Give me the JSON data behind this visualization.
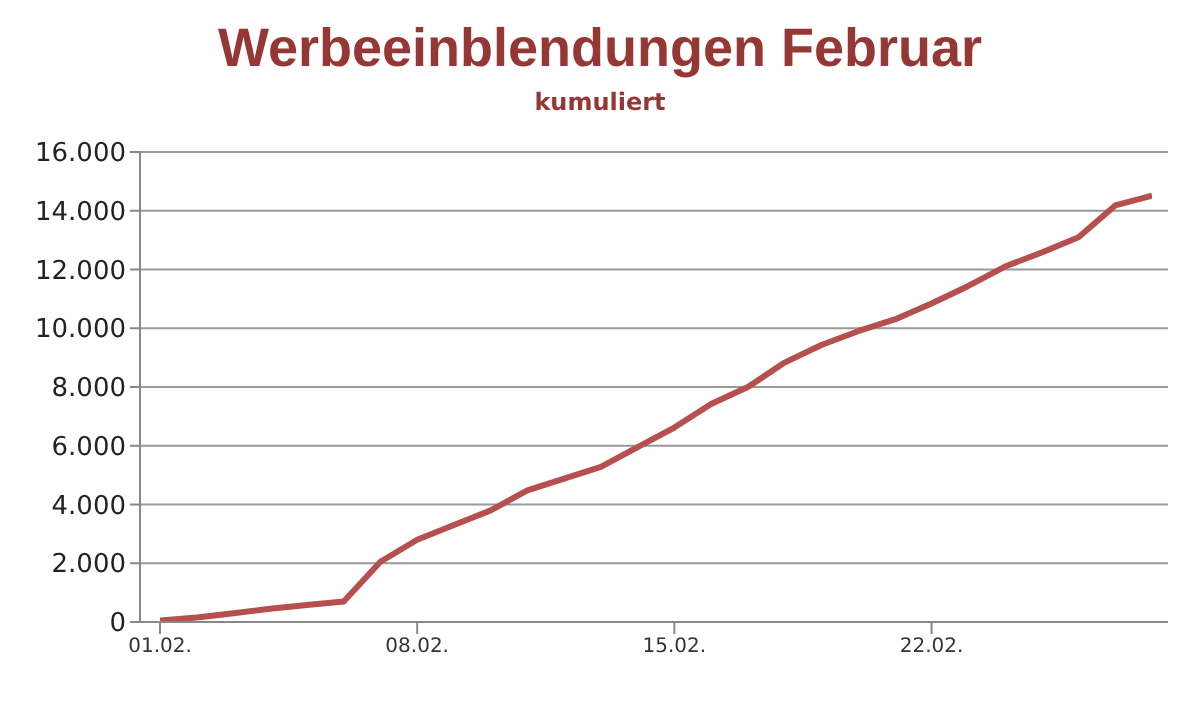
{
  "chart_data": {
    "type": "line",
    "title": "Werbeeinblendungen Februar",
    "subtitle": "kumuliert",
    "categories": [
      "01.02.",
      null,
      null,
      null,
      null,
      null,
      null,
      "08.02.",
      null,
      null,
      null,
      null,
      null,
      null,
      "15.02.",
      null,
      null,
      null,
      null,
      null,
      null,
      "22.02.",
      null,
      null,
      null,
      null,
      null,
      null
    ],
    "series": [
      {
        "color": "#b5504f",
        "values": [
          50,
          150,
          300,
          450,
          580,
          700,
          2050,
          2800,
          3300,
          3800,
          4480,
          4880,
          5280,
          5950,
          6620,
          7420,
          8000,
          8830,
          9430,
          9900,
          10300,
          10840,
          11440,
          12100,
          12580,
          13100,
          14180,
          14510
        ]
      }
    ],
    "ylim": [
      0,
      16000
    ],
    "yticks": [
      0,
      {
        "value": 2000,
        "label": "2.000"
      },
      {
        "value": 4000,
        "label": "4.000"
      },
      {
        "value": 6000,
        "label": "6.000"
      },
      {
        "value": 8000,
        "label": "8.000"
      },
      {
        "value": 10000,
        "label": "10.000"
      },
      {
        "value": 12000,
        "label": "12.000"
      },
      {
        "value": 14000,
        "label": "14.000"
      },
      {
        "value": 16000,
        "label": "16.000"
      }
    ],
    "grid": "y",
    "legend": false,
    "marker": "none",
    "line_style": "solid"
  }
}
